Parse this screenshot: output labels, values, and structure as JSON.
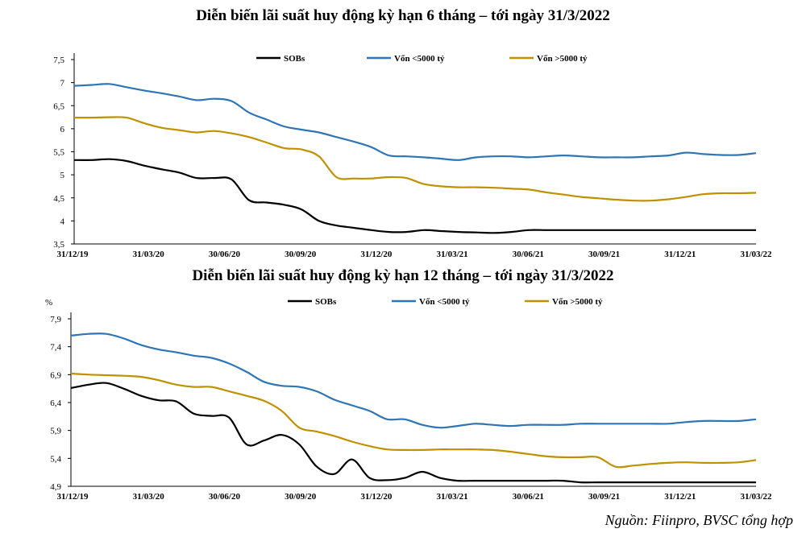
{
  "chart_data": [
    {
      "type": "line",
      "title": "Diễn biến lãi suất huy động kỳ hạn 6 tháng – tới ngày 31/3/2022",
      "ylabel": "",
      "ylim": [
        3.5,
        7.5
      ],
      "yticks": [
        "3,5",
        "4",
        "4,5",
        "5",
        "5,5",
        "6",
        "6,5",
        "7",
        "7,5"
      ],
      "ytick_values": [
        3.5,
        4,
        4.5,
        5,
        5.5,
        6,
        6.5,
        7,
        7.5
      ],
      "xtick_labels": [
        "31/12/19",
        "31/03/20",
        "30/06/20",
        "30/09/20",
        "31/12/20",
        "31/03/21",
        "30/06/21",
        "30/09/21",
        "31/12/21",
        "31/03/22"
      ],
      "series": [
        {
          "name": "SOBs",
          "color": "#000000",
          "values": [
            5.32,
            5.32,
            5.34,
            5.3,
            5.2,
            5.12,
            5.05,
            4.93,
            4.93,
            4.9,
            4.45,
            4.4,
            4.35,
            4.25,
            4.0,
            3.9,
            3.85,
            3.8,
            3.76,
            3.76,
            3.8,
            3.78,
            3.76,
            3.75,
            3.74,
            3.76,
            3.8,
            3.8,
            3.8,
            3.8,
            3.8,
            3.8,
            3.8,
            3.8,
            3.8,
            3.8,
            3.8,
            3.8,
            3.8,
            3.8
          ]
        },
        {
          "name": "Vốn <5000 tỷ",
          "color": "#2E75B6",
          "values": [
            6.93,
            6.95,
            6.97,
            6.9,
            6.83,
            6.77,
            6.7,
            6.62,
            6.65,
            6.6,
            6.35,
            6.2,
            6.05,
            5.98,
            5.92,
            5.82,
            5.72,
            5.6,
            5.42,
            5.4,
            5.38,
            5.35,
            5.32,
            5.38,
            5.4,
            5.4,
            5.38,
            5.4,
            5.42,
            5.4,
            5.38,
            5.38,
            5.38,
            5.4,
            5.42,
            5.48,
            5.45,
            5.43,
            5.43,
            5.47
          ]
        },
        {
          "name": "Vốn >5000 tỷ",
          "color": "#BF9000",
          "values": [
            6.24,
            6.24,
            6.25,
            6.24,
            6.12,
            6.02,
            5.97,
            5.92,
            5.95,
            5.9,
            5.82,
            5.7,
            5.58,
            5.55,
            5.4,
            4.95,
            4.92,
            4.92,
            4.95,
            4.93,
            4.8,
            4.75,
            4.73,
            4.73,
            4.72,
            4.7,
            4.68,
            4.62,
            4.57,
            4.52,
            4.49,
            4.46,
            4.44,
            4.44,
            4.47,
            4.52,
            4.58,
            4.6,
            4.6,
            4.61
          ]
        }
      ],
      "legend": [
        "SOBs",
        "Vốn <5000 tỷ",
        "Vốn >5000 tỷ"
      ]
    },
    {
      "type": "line",
      "title": "Diễn biến lãi suất huy động kỳ hạn 12 tháng – tới ngày 31/3/2022",
      "ylabel": "%",
      "ylim": [
        4.9,
        7.9
      ],
      "yticks": [
        "4,9",
        "5,4",
        "5,9",
        "6,4",
        "6,9",
        "7,4",
        "7,9"
      ],
      "ytick_values": [
        4.9,
        5.4,
        5.9,
        6.4,
        6.9,
        7.4,
        7.9
      ],
      "xtick_labels": [
        "31/12/19",
        "31/03/20",
        "30/06/20",
        "30/09/20",
        "31/12/20",
        "31/03/21",
        "30/06/21",
        "30/09/21",
        "31/12/21",
        "31/03/22"
      ],
      "series": [
        {
          "name": "SOBs",
          "color": "#000000",
          "values": [
            6.66,
            6.72,
            6.75,
            6.65,
            6.52,
            6.44,
            6.42,
            6.2,
            6.16,
            6.13,
            5.65,
            5.72,
            5.82,
            5.65,
            5.25,
            5.12,
            5.38,
            5.05,
            5.01,
            5.05,
            5.16,
            5.05,
            5.0,
            5.0,
            5.0,
            5.0,
            5.0,
            5.0,
            5.0,
            4.97,
            4.97,
            4.97,
            4.97,
            4.97,
            4.97,
            4.97,
            4.97,
            4.97,
            4.97,
            4.97
          ]
        },
        {
          "name": "Vốn <5000 tỷ",
          "color": "#2E75B6",
          "values": [
            7.6,
            7.63,
            7.63,
            7.55,
            7.43,
            7.35,
            7.3,
            7.24,
            7.2,
            7.1,
            6.95,
            6.77,
            6.7,
            6.68,
            6.6,
            6.45,
            6.35,
            6.25,
            6.1,
            6.1,
            6.0,
            5.95,
            5.98,
            6.02,
            6.0,
            5.98,
            6.0,
            6.0,
            6.0,
            6.02,
            6.02,
            6.02,
            6.02,
            6.02,
            6.02,
            6.05,
            6.07,
            6.07,
            6.07,
            6.1
          ]
        },
        {
          "name": "Vốn >5000 tỷ",
          "color": "#BF9000",
          "values": [
            6.92,
            6.9,
            6.89,
            6.88,
            6.86,
            6.8,
            6.72,
            6.68,
            6.68,
            6.6,
            6.52,
            6.43,
            6.25,
            5.95,
            5.88,
            5.8,
            5.7,
            5.62,
            5.56,
            5.55,
            5.55,
            5.56,
            5.56,
            5.56,
            5.55,
            5.52,
            5.48,
            5.44,
            5.42,
            5.42,
            5.42,
            5.25,
            5.27,
            5.3,
            5.32,
            5.33,
            5.32,
            5.32,
            5.33,
            5.37
          ]
        }
      ],
      "legend": [
        "SOBs",
        "Vốn <5000 tỷ",
        "Vốn >5000 tỷ"
      ]
    }
  ],
  "source": "Nguồn: Fiinpro, BVSC tổng hợp"
}
